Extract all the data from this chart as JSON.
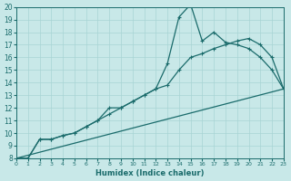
{
  "xlabel": "Humidex (Indice chaleur)",
  "xlim": [
    0,
    23
  ],
  "ylim": [
    8,
    20
  ],
  "yticks": [
    8,
    9,
    10,
    11,
    12,
    13,
    14,
    15,
    16,
    17,
    18,
    19,
    20
  ],
  "xticks": [
    0,
    1,
    2,
    3,
    4,
    5,
    6,
    7,
    8,
    9,
    10,
    11,
    12,
    13,
    14,
    15,
    16,
    17,
    18,
    19,
    20,
    21,
    22,
    23
  ],
  "bg_color": "#c8e8e8",
  "line_color": "#1a6b6b",
  "grid_color": "#a8d4d4",
  "line1_x": [
    0,
    1,
    2,
    3,
    4,
    5,
    6,
    7,
    8,
    9,
    10,
    11,
    12,
    13,
    14,
    15,
    16,
    17,
    18,
    19,
    20,
    21,
    22,
    23
  ],
  "line1_y": [
    8.0,
    8.0,
    9.5,
    9.5,
    9.8,
    10.0,
    10.5,
    11.0,
    11.5,
    12.0,
    12.5,
    13.0,
    13.5,
    15.5,
    19.2,
    20.2,
    17.3,
    18.0,
    17.2,
    17.0,
    16.7,
    16.0,
    15.0,
    13.5
  ],
  "line2_x": [
    0,
    1,
    2,
    3,
    4,
    5,
    6,
    7,
    8,
    9,
    10,
    11,
    12,
    13,
    14,
    15,
    16,
    17,
    18,
    19,
    20,
    21,
    22,
    23
  ],
  "line2_y": [
    8.0,
    8.0,
    9.5,
    9.5,
    9.8,
    10.0,
    10.5,
    11.0,
    12.0,
    12.0,
    12.5,
    13.0,
    13.5,
    13.8,
    15.0,
    16.0,
    16.3,
    16.7,
    17.0,
    17.3,
    17.5,
    17.0,
    16.0,
    13.5
  ],
  "line3_x": [
    0,
    23
  ],
  "line3_y": [
    8.0,
    13.5
  ]
}
